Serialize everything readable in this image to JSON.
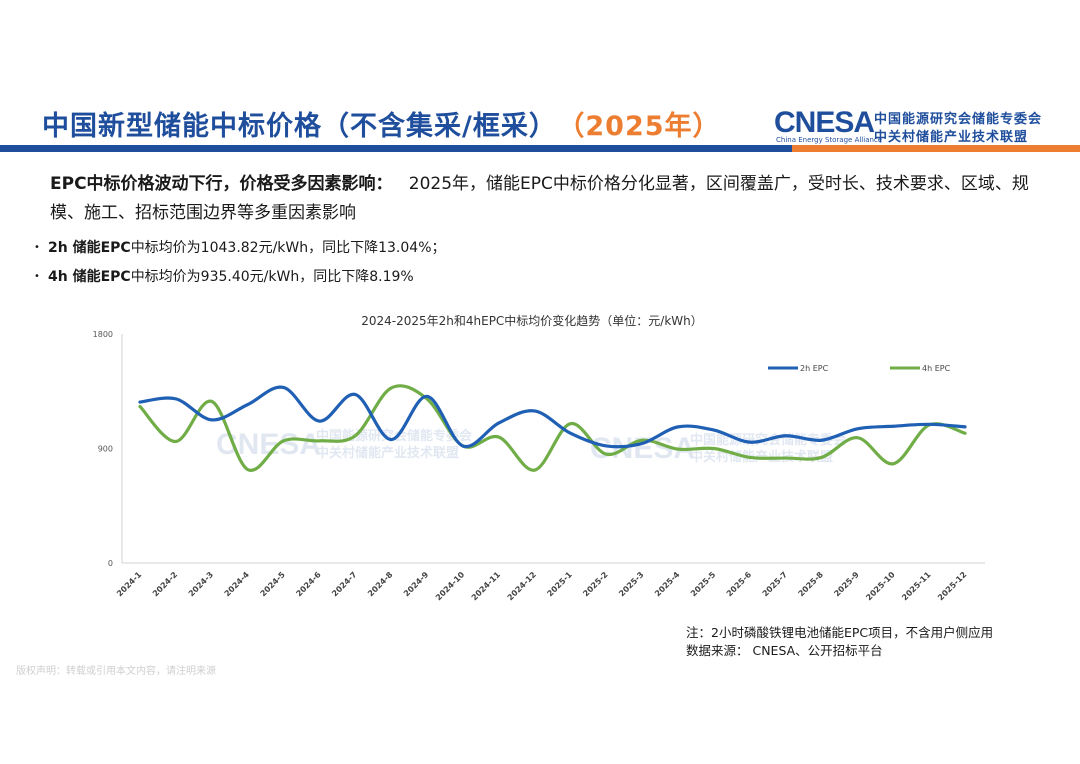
{
  "header": {
    "title": "中国新型储能中标价格（不含集采/框采）",
    "year": "（2025年）"
  },
  "logo": {
    "main": "CNESA",
    "sub": "China Energy Storage Alliance",
    "cn_line1": "中国能源研究会储能专委会",
    "cn_line2": "中关村储能产业技术联盟"
  },
  "intro": {
    "lead": "EPC中标价格波动下行，价格受多因素影响：",
    "body": "2025年，储能EPC中标价格分化显著，区间覆盖广，受时长、技术要求、区域、规模、施工、招标范围边界等多重因素影响"
  },
  "bullets": [
    {
      "bold": "2h 储能EPC",
      "text": "中标均价为1043.82元/kWh，同比下降13.04%；"
    },
    {
      "bold": "4h 储能EPC",
      "text": "中标均价为935.40元/kWh，同比下降8.19%"
    }
  ],
  "colors": {
    "brand_blue": "#1f4e9c",
    "brand_orange": "#ed7d31",
    "series_2h": "#1f5fb4",
    "series_4h": "#70ad47"
  },
  "chart_data": {
    "type": "line",
    "title": "2024-2025年2h和4hEPC中标均价变化趋势（单位：元/kWh）",
    "categories": [
      "2024-1",
      "2024-2",
      "2024-3",
      "2024-4",
      "2024-5",
      "2024-6",
      "2024-7",
      "2024-8",
      "2024-9",
      "2024-10",
      "2024-11",
      "2024-12",
      "2025-1",
      "2025-2",
      "2025-3",
      "2025-4",
      "2025-5",
      "2025-6",
      "2025-7",
      "2025-8",
      "2025-9",
      "2025-10",
      "2025-11",
      "2025-12"
    ],
    "series": [
      {
        "name": "2h EPC",
        "values": [
          1265,
          1290,
          1125,
          1245,
          1380,
          1115,
          1325,
          970,
          1310,
          920,
          1100,
          1195,
          1020,
          920,
          940,
          1070,
          1045,
          950,
          1000,
          965,
          1055,
          1075,
          1090,
          1070
        ]
      },
      {
        "name": "4h EPC",
        "values": [
          1230,
          955,
          1270,
          735,
          960,
          960,
          1000,
          1375,
          1290,
          920,
          990,
          730,
          1095,
          855,
          965,
          895,
          900,
          830,
          825,
          830,
          985,
          780,
          1085,
          1020
        ]
      }
    ],
    "ylim": [
      0,
      1800
    ],
    "yticks": [
      0,
      900,
      1800
    ],
    "smooth": true,
    "legend_position": "top-right",
    "grid": false
  },
  "notes": [
    "注：2小时磷酸铁锂电池储能EPC项目，不含用户侧应用",
    "数据来源：  CNESA、公开招标平台"
  ],
  "disclaimer": "版权声明：转载或引用本文内容，请注明来源"
}
